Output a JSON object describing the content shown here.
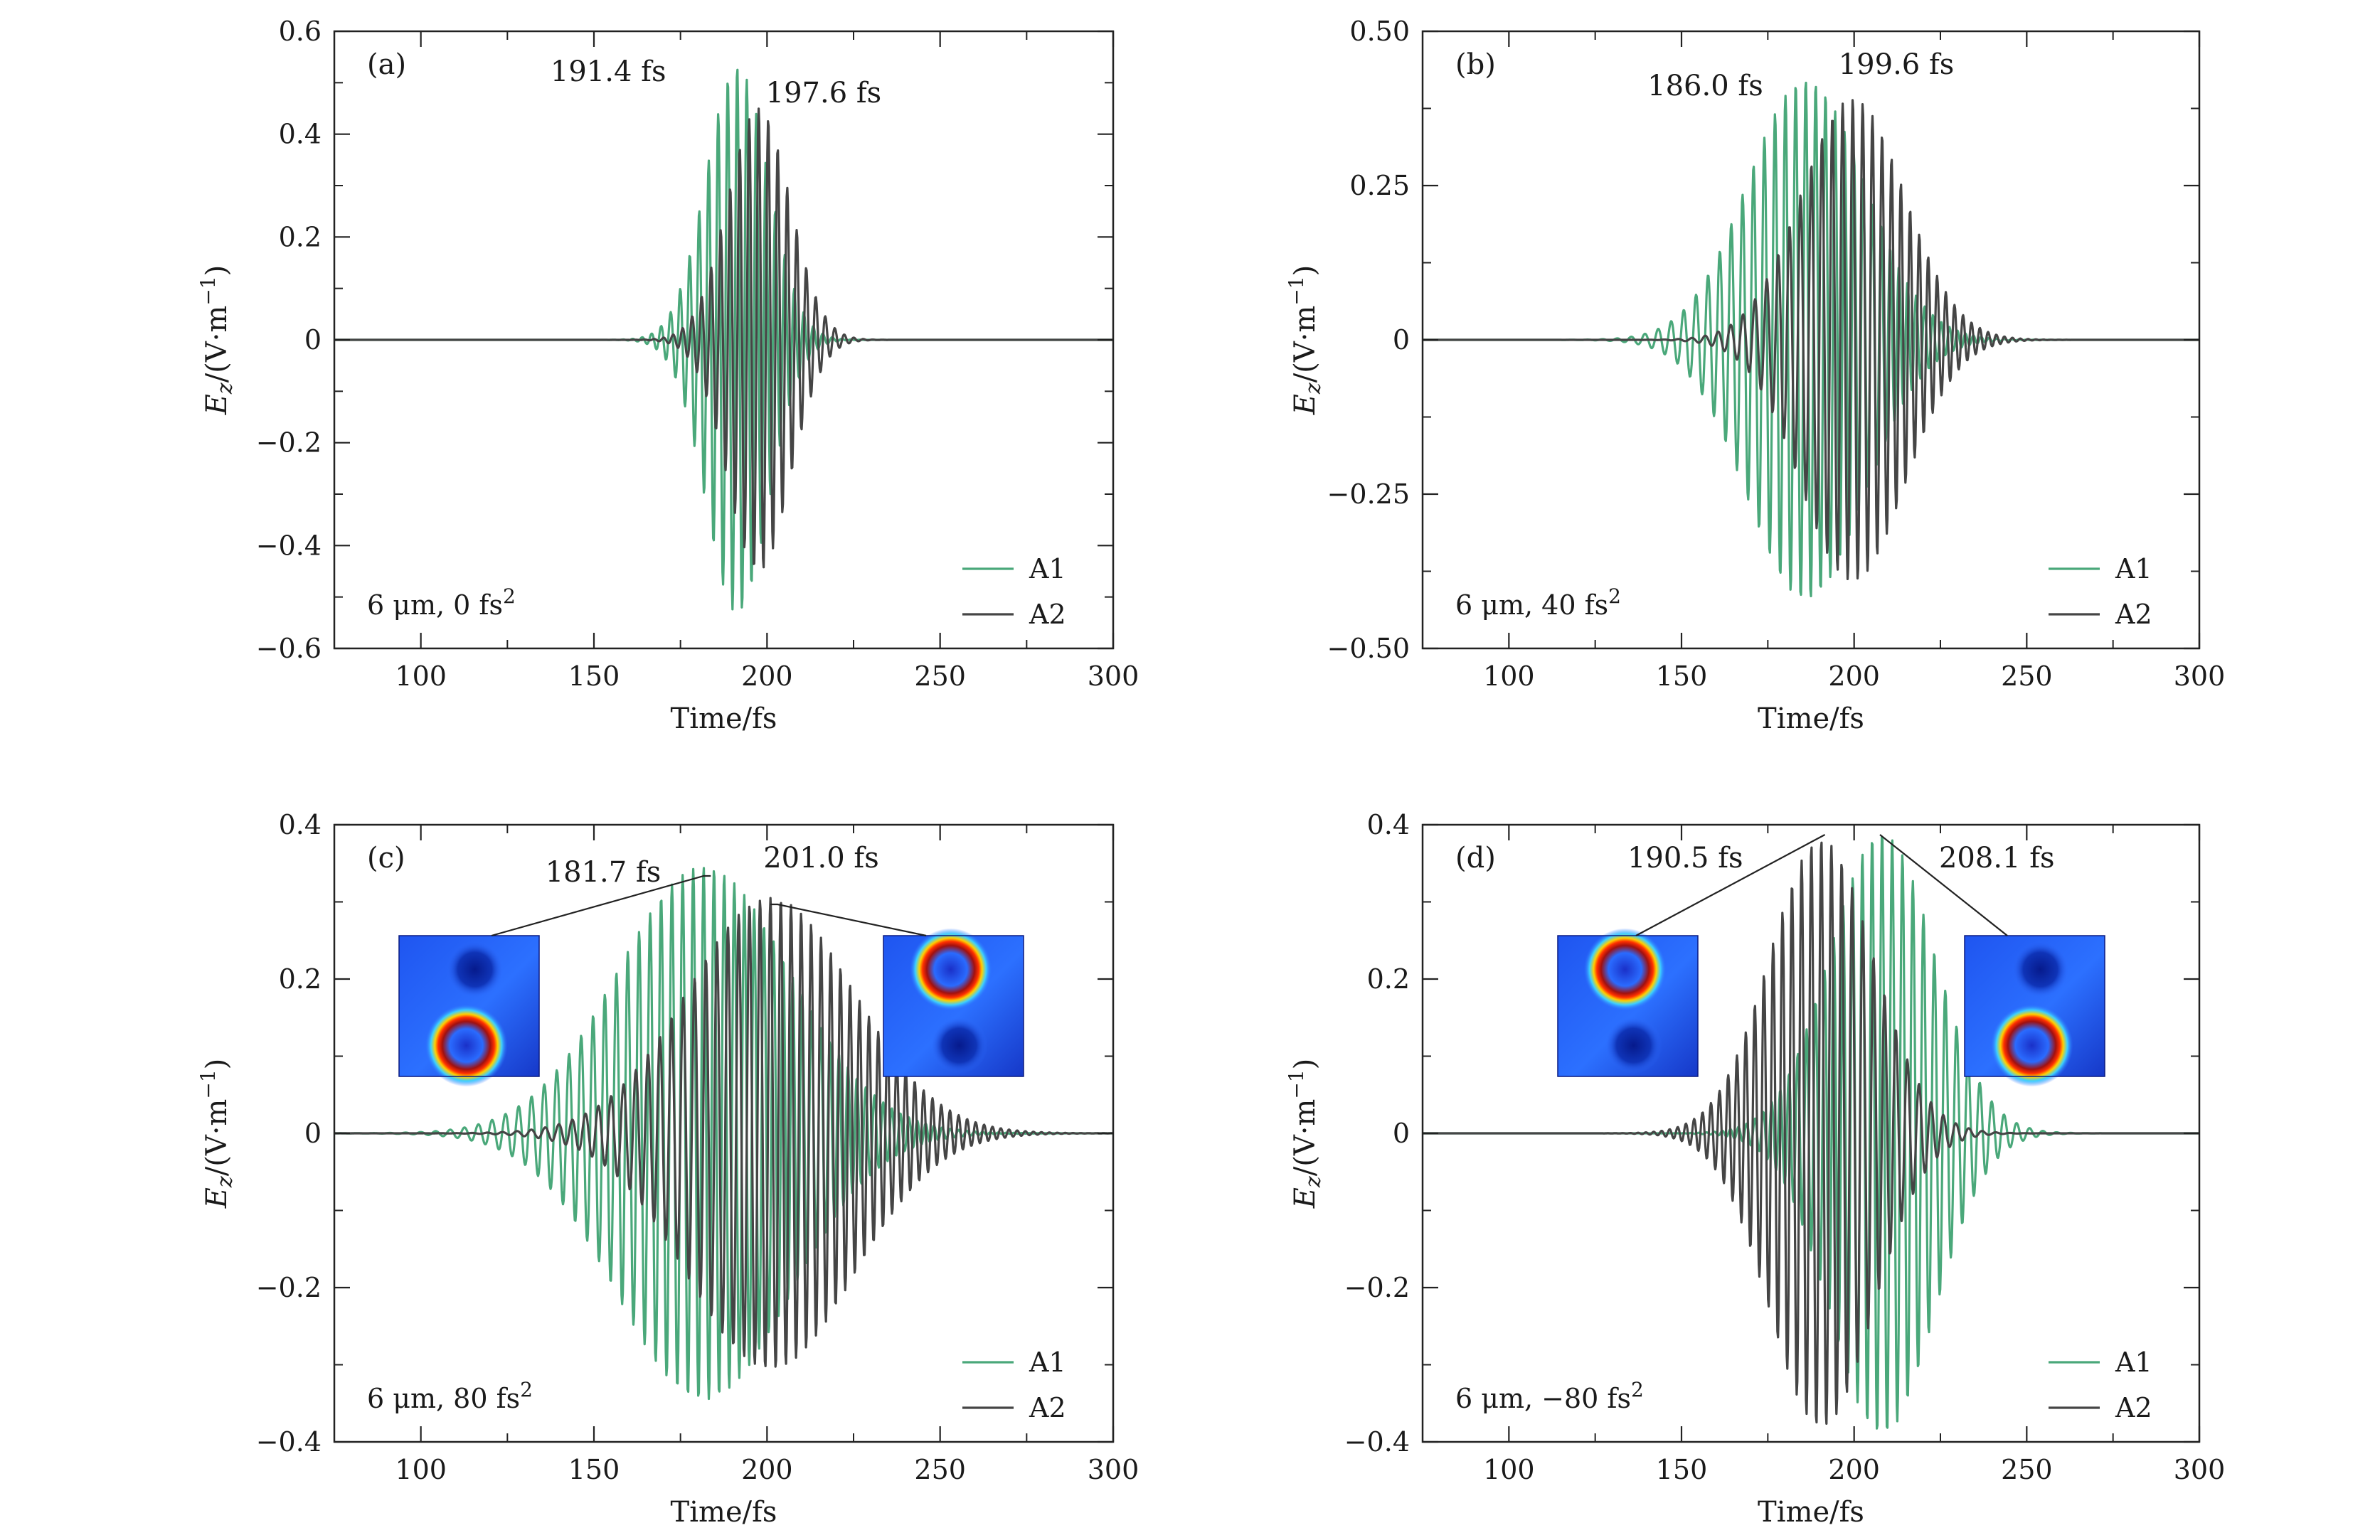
{
  "figure": {
    "colors": {
      "A1": "#4aa87a",
      "A2": "#454545",
      "axis": "#222222",
      "leader": "#222222"
    },
    "shared": {
      "xlabel": "Time/fs",
      "ylabel_main": "E",
      "ylabel_sub": "z",
      "ylabel_rest": "/(V·m",
      "ylabel_sup": "−1",
      "ylabel_close": ")"
    }
  },
  "chart_data": [
    {
      "type": "line",
      "panel": "(a)",
      "condition_text": "6 μm, 0 fs",
      "condition_sup": "2",
      "xlabel": "Time/fs",
      "xlim": [
        75,
        300
      ],
      "ylim": [
        -0.6,
        0.6
      ],
      "xticks": [
        100,
        150,
        200,
        250,
        300
      ],
      "yticks": [
        -0.6,
        -0.4,
        -0.2,
        0,
        0.2,
        0.4,
        0.6
      ],
      "ytick_labels": [
        "−0.6",
        "−0.4",
        "−0.2",
        "0",
        "0.2",
        "0.4",
        "0.6"
      ],
      "series": [
        {
          "name": "A1",
          "center": 191.4,
          "width": 9,
          "amp": 0.53,
          "period": 2.75,
          "chirp": 0
        },
        {
          "name": "A2",
          "center": 197.6,
          "width": 9,
          "amp": 0.45,
          "period": 2.75,
          "chirp": 0
        }
      ],
      "annotations": [
        {
          "text": "191.4 fs",
          "x": 191.4,
          "y": 0.53,
          "series": "A1"
        },
        {
          "text": "197.6 fs",
          "x": 197.6,
          "y": 0.45,
          "series": "A2"
        }
      ],
      "legend": [
        "A1",
        "A2"
      ]
    },
    {
      "type": "line",
      "panel": "(b)",
      "condition_text": "6 μm, 40 fs",
      "condition_sup": "2",
      "xlabel": "Time/fs",
      "xlim": [
        75,
        300
      ],
      "ylim": [
        -0.5,
        0.5
      ],
      "xticks": [
        100,
        150,
        200,
        250,
        300
      ],
      "yticks": [
        -0.5,
        -0.25,
        0,
        0.25,
        0.5
      ],
      "ytick_labels": [
        "−0.50",
        "−0.25",
        "0",
        "0.25",
        "0.50"
      ],
      "series": [
        {
          "name": "A1",
          "center": 186.0,
          "width": 17,
          "amp": 0.42,
          "period": 2.9,
          "chirp": 0.006
        },
        {
          "name": "A2",
          "center": 199.6,
          "width": 15,
          "amp": 0.39,
          "period": 2.9,
          "chirp": 0.006
        }
      ],
      "annotations": [
        {
          "text": "186.0 fs",
          "x": 186.0,
          "y": 0.42,
          "series": "A1"
        },
        {
          "text": "199.6 fs",
          "x": 199.6,
          "y": 0.39,
          "series": "A2"
        }
      ],
      "legend": [
        "A1",
        "A2"
      ]
    },
    {
      "type": "line",
      "panel": "(c)",
      "condition_text": "6 μm, 80 fs",
      "condition_sup": "2",
      "xlabel": "Time/fs",
      "xlim": [
        75,
        300
      ],
      "ylim": [
        -0.4,
        0.4
      ],
      "xticks": [
        100,
        150,
        200,
        250,
        300
      ],
      "yticks": [
        -0.4,
        -0.2,
        0,
        0.2,
        0.4
      ],
      "ytick_labels": [
        "−0.4",
        "−0.2",
        "0",
        "0.2",
        "0.4"
      ],
      "series": [
        {
          "name": "A1",
          "center": 181.7,
          "width": 25,
          "amp": 0.345,
          "period": 3.0,
          "chirp": 0.004
        },
        {
          "name": "A2",
          "center": 201.0,
          "width": 24,
          "amp": 0.305,
          "period": 3.0,
          "chirp": 0.004
        }
      ],
      "annotations": [
        {
          "text": "181.7 fs",
          "x": 181.7,
          "y": 0.345,
          "series": "A1"
        },
        {
          "text": "201.0 fs",
          "x": 201.0,
          "y": 0.305,
          "series": "A2"
        }
      ],
      "legend": [
        "A1",
        "A2"
      ]
    },
    {
      "type": "line",
      "panel": "(d)",
      "condition_text": "6 μm, −80 fs",
      "condition_sup": "2",
      "xlabel": "Time/fs",
      "xlim": [
        75,
        300
      ],
      "ylim": [
        -0.4,
        0.4
      ],
      "xticks": [
        100,
        150,
        200,
        250,
        300
      ],
      "yticks": [
        -0.4,
        -0.2,
        0,
        0.2,
        0.4
      ],
      "ytick_labels": [
        "−0.4",
        "−0.2",
        "0",
        "0.2",
        "0.4"
      ],
      "series": [
        {
          "name": "A1",
          "center": 208.1,
          "width": 15,
          "amp": 0.39,
          "period": 2.9,
          "chirp": -0.006
        },
        {
          "name": "A2",
          "center": 190.5,
          "width": 15,
          "amp": 0.38,
          "period": 2.9,
          "chirp": -0.006
        }
      ],
      "annotations": [
        {
          "text": "190.5 fs",
          "x": 190.5,
          "y": 0.38,
          "series": "A2"
        },
        {
          "text": "208.1 fs",
          "x": 208.1,
          "y": 0.39,
          "series": "A1"
        }
      ],
      "legend": [
        "A1",
        "A2"
      ]
    }
  ]
}
